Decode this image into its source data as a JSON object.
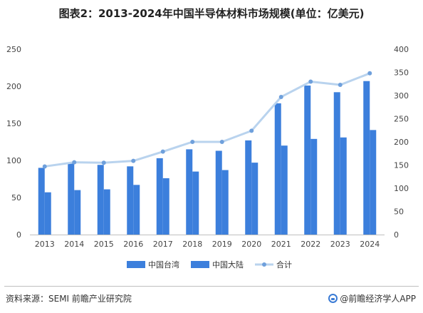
{
  "title": "图表2：2013-2024年中国半导体材料市场规模(单位：亿美元)",
  "source": "资料来源：SEMI 前瞻产业研究院",
  "brand": "@前瞻经济学人APP",
  "watermark": "前瞻产业研究院",
  "colors": {
    "taiwan": "#3c7fdc",
    "mainland": "#3c7fdc",
    "total_line": "#b9d3ee",
    "total_marker": "#6fa0dc"
  },
  "chart_data": {
    "type": "bar",
    "categories": [
      "2013",
      "2014",
      "2015",
      "2016",
      "2017",
      "2018",
      "2019",
      "2020",
      "2021",
      "2022",
      "2023",
      "2024"
    ],
    "series": [
      {
        "name": "中国台湾",
        "type": "bar",
        "axis": "left",
        "values": [
          90,
          96,
          94,
          92,
          103,
          115,
          113,
          127,
          177,
          201,
          192,
          207
        ]
      },
      {
        "name": "中国大陆",
        "type": "bar",
        "axis": "left",
        "values": [
          57,
          60,
          61,
          67,
          76,
          85,
          87,
          97,
          120,
          129,
          131,
          141
        ]
      },
      {
        "name": "合计",
        "type": "line",
        "axis": "right",
        "values": [
          147,
          156,
          155,
          159,
          179,
          200,
          200,
          224,
          297,
          330,
          323,
          348
        ]
      }
    ],
    "y_left": {
      "min": 0,
      "max": 250,
      "ticks": [
        "0",
        "50",
        "100",
        "150",
        "200",
        "250"
      ]
    },
    "y_right": {
      "min": 0,
      "max": 400,
      "ticks": [
        "0",
        "50",
        "100",
        "150",
        "200",
        "250",
        "300",
        "350",
        "400"
      ]
    },
    "grid": false,
    "legend_position": "bottom"
  }
}
